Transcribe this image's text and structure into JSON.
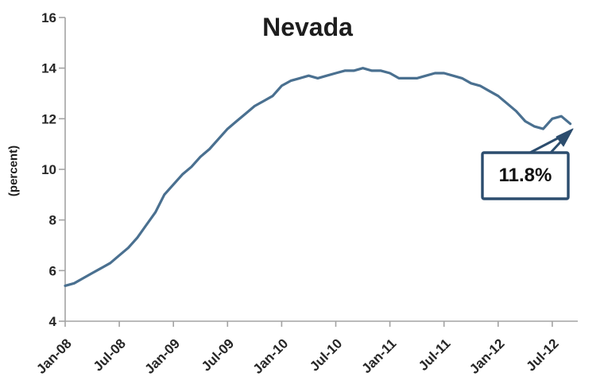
{
  "colors": {
    "line": "#4a7090",
    "axis": "#a3a3a3",
    "callout_border": "#2c4d6e",
    "text": "#1d1d1d"
  },
  "chart_data": {
    "type": "line",
    "title": "Nevada",
    "ylabel": "(percent)",
    "ylim": [
      4,
      16
    ],
    "yticks": [
      4,
      6,
      8,
      10,
      12,
      14,
      16
    ],
    "xtick_labels": [
      "Jan-08",
      "Jul-08",
      "Jan-09",
      "Jul-09",
      "Jan-10",
      "Jul-10",
      "Jan-11",
      "Jul-11",
      "Jan-12",
      "Jul-12"
    ],
    "xtick_month_indices": [
      0,
      6,
      12,
      18,
      24,
      30,
      36,
      42,
      48,
      54
    ],
    "grid": false,
    "legend": "none",
    "series": [
      {
        "name": "Nevada",
        "months": [
          "Jan-08",
          "Feb-08",
          "Mar-08",
          "Apr-08",
          "May-08",
          "Jun-08",
          "Jul-08",
          "Aug-08",
          "Sep-08",
          "Oct-08",
          "Nov-08",
          "Dec-08",
          "Jan-09",
          "Feb-09",
          "Mar-09",
          "Apr-09",
          "May-09",
          "Jun-09",
          "Jul-09",
          "Aug-09",
          "Sep-09",
          "Oct-09",
          "Nov-09",
          "Dec-09",
          "Jan-10",
          "Feb-10",
          "Mar-10",
          "Apr-10",
          "May-10",
          "Jun-10",
          "Jul-10",
          "Aug-10",
          "Sep-10",
          "Oct-10",
          "Nov-10",
          "Dec-10",
          "Jan-11",
          "Feb-11",
          "Mar-11",
          "Apr-11",
          "May-11",
          "Jun-11",
          "Jul-11",
          "Aug-11",
          "Sep-11",
          "Oct-11",
          "Nov-11",
          "Dec-11",
          "Jan-12",
          "Feb-12",
          "Mar-12",
          "Apr-12",
          "May-12",
          "Jun-12",
          "Jul-12",
          "Aug-12",
          "Sep-12"
        ],
        "values": [
          5.4,
          5.5,
          5.7,
          5.9,
          6.1,
          6.3,
          6.6,
          6.9,
          7.3,
          7.8,
          8.3,
          9.0,
          9.4,
          9.8,
          10.1,
          10.5,
          10.8,
          11.2,
          11.6,
          11.9,
          12.2,
          12.5,
          12.7,
          12.9,
          13.3,
          13.5,
          13.6,
          13.7,
          13.6,
          13.7,
          13.8,
          13.9,
          13.9,
          14.0,
          13.9,
          13.9,
          13.8,
          13.6,
          13.6,
          13.6,
          13.7,
          13.8,
          13.8,
          13.7,
          13.6,
          13.4,
          13.3,
          13.1,
          12.9,
          12.6,
          12.3,
          11.9,
          11.7,
          11.6,
          12.0,
          12.1,
          11.8
        ]
      }
    ],
    "callout": {
      "text": "11.8%",
      "value": 11.8
    }
  }
}
